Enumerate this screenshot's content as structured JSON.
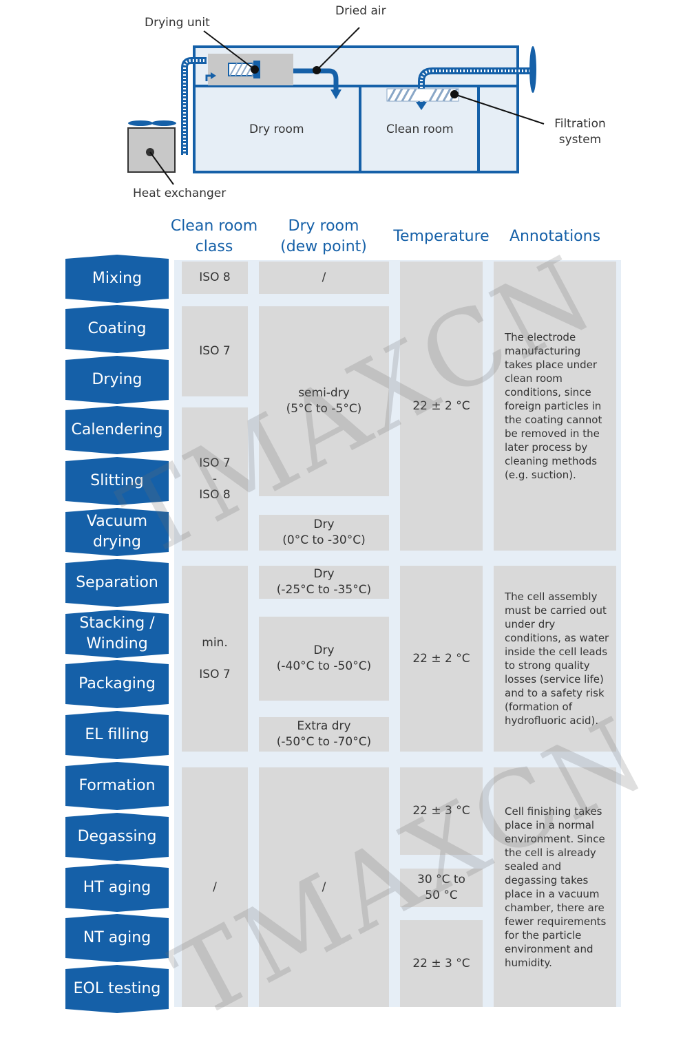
{
  "schematic": {
    "labels": {
      "drying_unit": "Drying unit",
      "dried_air": "Dried air",
      "dry_room": "Dry room",
      "clean_room": "Clean room",
      "filtration_system": "Filtration\nsystem",
      "heat_exchanger": "Heat exchanger"
    },
    "colors": {
      "frame": "#1560a8",
      "box_fill": "#e6eef6",
      "unit_grey": "#c8c8c8"
    }
  },
  "table": {
    "headers": {
      "clean_room_class": "Clean room\nclass",
      "dry_room": "Dry room\n(dew point)",
      "temperature": "Temperature",
      "annotations": "Annotations"
    },
    "steps": [
      "Mixing",
      "Coating",
      "Drying",
      "Calendering",
      "Slitting",
      "Vacuum\ndrying",
      "Separation",
      "Stacking /\nWinding",
      "Packaging",
      "EL filling",
      "Formation",
      "Degassing",
      "HT aging",
      "NT aging",
      "EOL testing"
    ],
    "clean_class": [
      {
        "text": "ISO 8"
      },
      {
        "text": "ISO 7"
      },
      {
        "text": "ISO 7\n-\nISO 8"
      },
      {
        "text": "min.\n\nISO 7"
      },
      {
        "text": "/"
      }
    ],
    "dew_point": [
      {
        "text": "/"
      },
      {
        "text": "semi-dry\n(5°C to -5°C)"
      },
      {
        "text": "Dry\n(0°C to -30°C)"
      },
      {
        "text": "Dry\n(-25°C to -35°C)"
      },
      {
        "text": "Dry\n(-40°C to -50°C)"
      },
      {
        "text": "Extra dry\n(-50°C to -70°C)"
      },
      {
        "text": "/"
      }
    ],
    "temperature": [
      {
        "text": "22 ± 2 °C"
      },
      {
        "text": "22 ± 2 °C"
      },
      {
        "text": "22 ± 3 °C"
      },
      {
        "text": "30 °C to\n50 °C"
      },
      {
        "text": "22 ± 3 °C"
      }
    ],
    "annotations": [
      {
        "text": "The electrode manufacturing takes place under clean room conditions, since foreign particles in the coating cannot be removed in the later process by cleaning methods (e.g. suction)."
      },
      {
        "text": "The cell assembly must be carried out under dry conditions, as water inside the cell leads to strong quality losses (service life) and to a safety risk (formation of hydrofluoric acid)."
      },
      {
        "text": "Cell finishing takes place in a normal environment. Since the cell is already sealed and degassing takes place in a vacuum chamber, there are fewer requirements for the particle environment and humidity."
      }
    ],
    "colors": {
      "step_blue": "#1560a8",
      "header_blue": "#1560a8",
      "cell_grey": "#d9d9d9",
      "stripe": "#e6eef6"
    }
  },
  "watermark": {
    "text": "TMAXCN"
  }
}
